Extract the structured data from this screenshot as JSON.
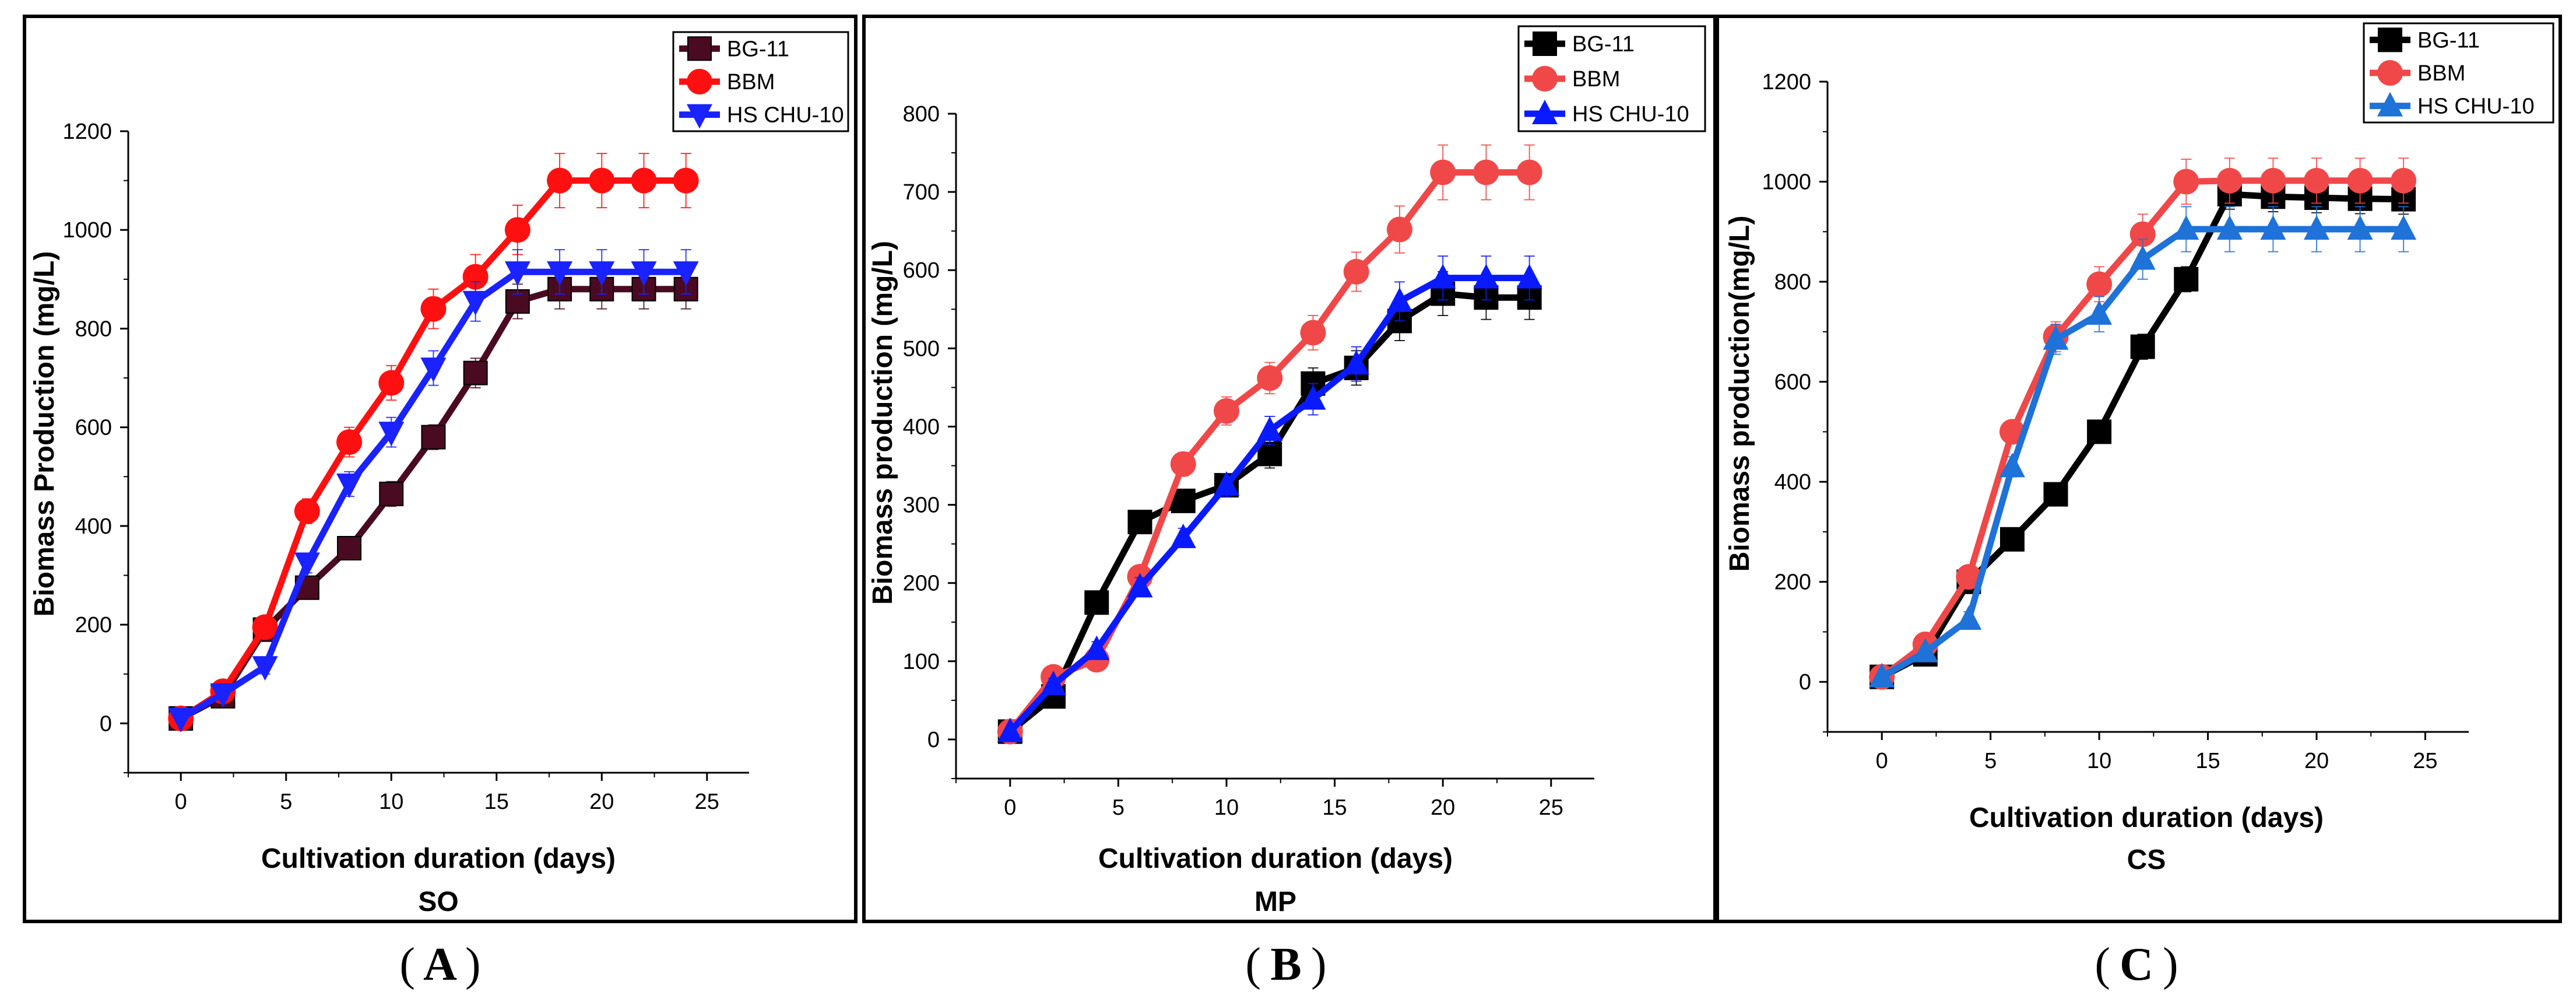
{
  "panels": [
    {
      "letter": "A",
      "code": "SO",
      "xlabel": "Cultivation duration (days)",
      "ylabel": "Biomass Production (mg/L)"
    },
    {
      "letter": "B",
      "code": "MP",
      "xlabel": "Cultivation duration (days)",
      "ylabel": "Biomass production (mg/L)"
    },
    {
      "letter": "C",
      "code": "CS",
      "xlabel": "Cultivation duration (days)",
      "ylabel": "Biomass production(mg/L)"
    }
  ],
  "chart_data": [
    {
      "type": "line",
      "title": "SO",
      "xlabel": "Cultivation duration (days)",
      "ylabel": "Biomass Production (mg/L)",
      "xlim": [
        -2.5,
        27
      ],
      "ylim": [
        -100,
        1200
      ],
      "xticks": [
        0,
        5,
        10,
        15,
        20,
        25
      ],
      "yticks": [
        0,
        200,
        400,
        600,
        800,
        1000,
        1200
      ],
      "legend_position": "top-right",
      "x": [
        0,
        2,
        4,
        6,
        8,
        10,
        12,
        14,
        16,
        18,
        20,
        22,
        24
      ],
      "series": [
        {
          "name": "BG-11",
          "color": "#4a0a22",
          "marker": "square",
          "values": [
            10,
            55,
            190,
            275,
            355,
            465,
            580,
            710,
            855,
            880,
            880,
            880,
            880
          ],
          "errors": [
            5,
            10,
            15,
            20,
            20,
            25,
            25,
            30,
            35,
            40,
            40,
            40,
            40
          ]
        },
        {
          "name": "BBM",
          "color": "#ff1010",
          "marker": "circle",
          "values": [
            10,
            65,
            195,
            430,
            570,
            690,
            840,
            905,
            1000,
            1100,
            1100,
            1100,
            1100
          ],
          "errors": [
            5,
            10,
            15,
            25,
            30,
            35,
            40,
            45,
            50,
            55,
            55,
            55,
            55
          ]
        },
        {
          "name": "HS CHU-10",
          "color": "#1a22ff",
          "marker": "triangle-down",
          "values": [
            10,
            60,
            115,
            325,
            485,
            590,
            720,
            855,
            915,
            915,
            915,
            915,
            915
          ],
          "errors": [
            5,
            10,
            15,
            20,
            25,
            30,
            35,
            40,
            45,
            45,
            45,
            45,
            45
          ]
        }
      ]
    },
    {
      "type": "line",
      "title": "MP",
      "xlabel": "Cultivation duration (days)",
      "ylabel": "Biomass production (mg/L)",
      "xlim": [
        -2.5,
        27
      ],
      "ylim": [
        -50,
        800
      ],
      "xticks": [
        0,
        5,
        10,
        15,
        20,
        25
      ],
      "yticks": [
        0,
        100,
        200,
        300,
        400,
        500,
        600,
        700,
        800
      ],
      "legend_position": "top-right",
      "x": [
        0,
        2,
        4,
        6,
        8,
        10,
        12,
        14,
        16,
        18,
        20,
        22,
        24
      ],
      "series": [
        {
          "name": "BG-11",
          "color": "#000000",
          "marker": "square",
          "values": [
            10,
            55,
            175,
            278,
            305,
            325,
            365,
            455,
            475,
            535,
            570,
            565,
            565
          ],
          "errors": [
            3,
            8,
            10,
            12,
            12,
            15,
            18,
            20,
            22,
            25,
            28,
            28,
            28
          ]
        },
        {
          "name": "BBM",
          "color": "#f04848",
          "marker": "circle",
          "values": [
            10,
            80,
            102,
            208,
            352,
            420,
            462,
            520,
            598,
            652,
            725,
            725,
            725
          ],
          "errors": [
            3,
            8,
            10,
            12,
            15,
            18,
            20,
            22,
            25,
            30,
            35,
            35,
            35
          ]
        },
        {
          "name": "HS CHU-10",
          "color": "#0a1aff",
          "marker": "triangle-up",
          "values": [
            10,
            70,
            115,
            195,
            258,
            325,
            395,
            435,
            480,
            560,
            590,
            590,
            590
          ],
          "errors": [
            3,
            8,
            10,
            12,
            12,
            15,
            18,
            20,
            22,
            25,
            28,
            28,
            28
          ]
        }
      ]
    },
    {
      "type": "line",
      "title": "CS",
      "xlabel": "Cultivation duration (days)",
      "ylabel": "Biomass production(mg/L)",
      "xlim": [
        -2.5,
        27
      ],
      "ylim": [
        -100,
        1200
      ],
      "xticks": [
        0,
        5,
        10,
        15,
        20,
        25
      ],
      "yticks": [
        0,
        200,
        400,
        600,
        800,
        1000,
        1200
      ],
      "legend_position": "top-right",
      "x": [
        0,
        2,
        4,
        6,
        8,
        10,
        12,
        14,
        16,
        18,
        20,
        22,
        24
      ],
      "series": [
        {
          "name": "BG-11",
          "color": "#000000",
          "marker": "square",
          "values": [
            10,
            55,
            200,
            285,
            375,
            500,
            670,
            805,
            975,
            970,
            968,
            966,
            965
          ],
          "errors": [
            5,
            10,
            15,
            15,
            20,
            20,
            25,
            25,
            30,
            30,
            30,
            30,
            30
          ]
        },
        {
          "name": "BBM",
          "color": "#f04848",
          "marker": "circle",
          "values": [
            10,
            75,
            210,
            500,
            690,
            795,
            895,
            1000,
            1002,
            1002,
            1002,
            1002,
            1002
          ],
          "errors": [
            5,
            10,
            15,
            20,
            30,
            35,
            40,
            45,
            45,
            45,
            45,
            45,
            45
          ]
        },
        {
          "name": "HS CHU-10",
          "color": "#1e72d8",
          "marker": "triangle-up",
          "values": [
            10,
            60,
            125,
            430,
            685,
            735,
            845,
            905,
            905,
            905,
            905,
            905,
            905
          ],
          "errors": [
            5,
            10,
            15,
            20,
            30,
            35,
            40,
            45,
            45,
            45,
            45,
            45,
            45
          ]
        }
      ]
    }
  ]
}
